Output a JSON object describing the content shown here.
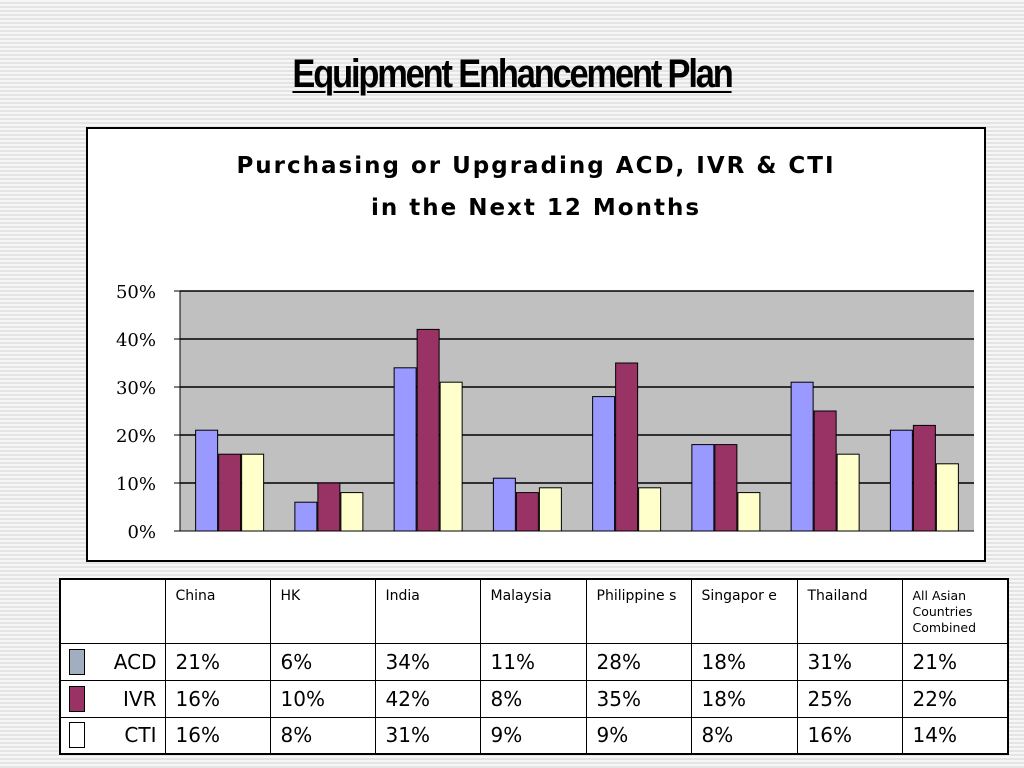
{
  "slide": {
    "title": "Equipment Enhancement Plan"
  },
  "chart_data": {
    "type": "bar",
    "title_line1": "Purchasing or Upgrading ACD, IVR & CTI",
    "title_line2": "in the Next 12 Months",
    "categories": [
      "China",
      "HK",
      "India",
      "Malaysia",
      "Philippines",
      "Singapore",
      "Thailand",
      "All Asian Countries Combined"
    ],
    "category_labels": [
      "China",
      "HK",
      "India",
      "Malaysia",
      "Philippine s",
      "Singapor e",
      "Thailand",
      "All Asian Countries Combined"
    ],
    "series": [
      {
        "name": "ACD",
        "color": "#9999ff",
        "values": [
          21,
          6,
          34,
          11,
          28,
          18,
          31,
          21
        ],
        "labels": [
          "21%",
          "6%",
          "34%",
          "11%",
          "28%",
          "18%",
          "31%",
          "21%"
        ]
      },
      {
        "name": "IVR",
        "color": "#993366",
        "values": [
          16,
          10,
          42,
          8,
          35,
          18,
          25,
          22
        ],
        "labels": [
          "16%",
          "10%",
          "42%",
          "8%",
          "35%",
          "18%",
          "25%",
          "22%"
        ]
      },
      {
        "name": "CTI",
        "color": "#ffffcc",
        "values": [
          16,
          8,
          31,
          9,
          9,
          8,
          16,
          14
        ],
        "labels": [
          "16%",
          "8%",
          "31%",
          "9%",
          "9%",
          "8%",
          "16%",
          "14%"
        ]
      }
    ],
    "ylim": [
      0,
      50
    ],
    "yticks": [
      0,
      10,
      20,
      30,
      40,
      50
    ],
    "ytick_labels": [
      "0%",
      "10%",
      "20%",
      "30%",
      "40%",
      "50%"
    ],
    "grid": true,
    "plot_background": "#c0c0c0",
    "legend": "data-table-below",
    "table_swatch_colors": [
      "#a0aec0",
      "#993366",
      "#ffffff"
    ]
  }
}
